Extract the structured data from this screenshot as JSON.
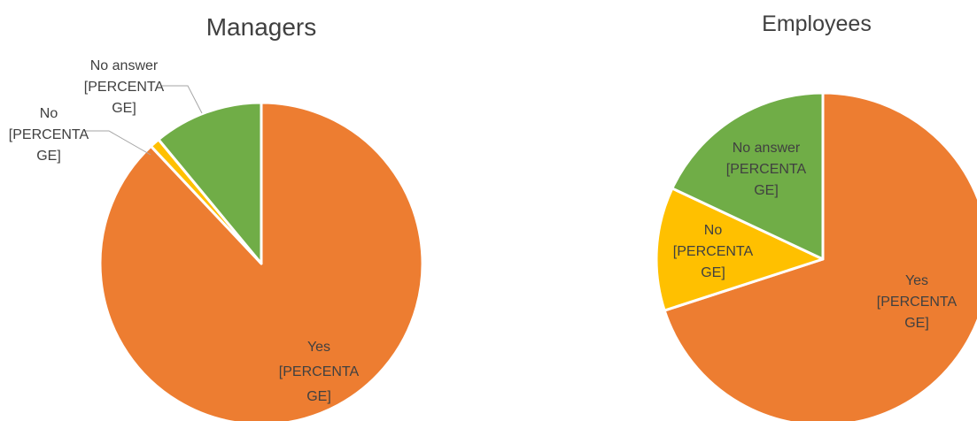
{
  "chart_data": [
    {
      "type": "pie",
      "title": "Managers",
      "slices": [
        {
          "name": "Yes",
          "value": 88,
          "color": "#ED7D31",
          "label_lines": [
            "Yes",
            "[PERCENTA",
            "GE]"
          ]
        },
        {
          "name": "No",
          "value": 1,
          "color": "#FFC000",
          "label_lines": [
            "No",
            "[PERCENTA",
            "GE]"
          ]
        },
        {
          "name": "No answer",
          "value": 11,
          "color": "#70AD47",
          "label_lines": [
            "No answer",
            "[PERCENTA",
            "GE]"
          ]
        }
      ]
    },
    {
      "type": "pie",
      "title": "Employees",
      "slices": [
        {
          "name": "Yes",
          "value": 70,
          "color": "#ED7D31",
          "label_lines": [
            "Yes",
            "[PERCENTA",
            "GE]"
          ]
        },
        {
          "name": "No",
          "value": 12,
          "color": "#FFC000",
          "label_lines": [
            "No",
            "[PERCENTA",
            "GE]"
          ]
        },
        {
          "name": "No answer",
          "value": 18,
          "color": "#70AD47",
          "label_lines": [
            "No answer",
            "[PERCENTA",
            "GE]"
          ]
        }
      ]
    }
  ]
}
